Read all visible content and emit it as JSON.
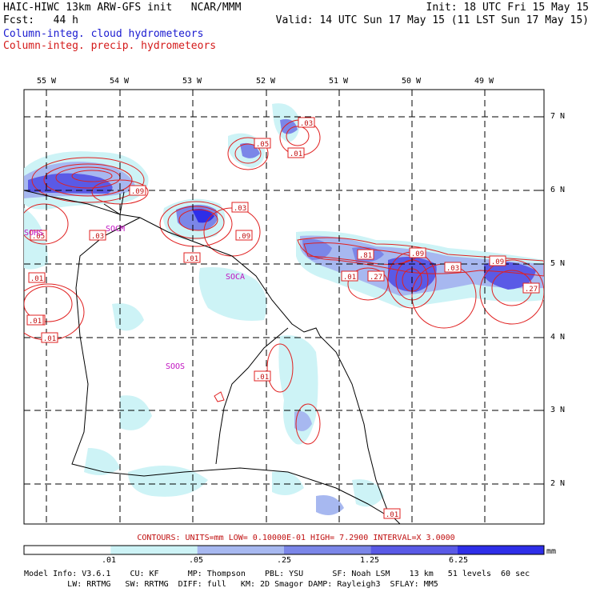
{
  "header": {
    "line1_left": "HAIC-HIWC 13km ARW-GFS init   NCAR/MMM",
    "line1_right": "Init: 18 UTC Fri 15 May 15",
    "line2_left": "Fcst:   44 h",
    "line2_right": "Valid: 14 UTC Sun 17 May 15 (11 LST Sun 17 May 15)",
    "line3": "Column-integ. cloud hydrometeors",
    "line4": "Column-integ. precip. hydrometeors"
  },
  "axes": {
    "lon_labels": [
      "55 W",
      "54 W",
      "53 W",
      "52 W",
      "51 W",
      "50 W",
      "49 W"
    ],
    "lat_labels": [
      "7 N",
      "6 N",
      "5 N",
      "4 N",
      "3 N",
      "2 N"
    ]
  },
  "stations": [
    "SOCA",
    "SOOS",
    "SOCM",
    "SOHS"
  ],
  "contour_labels": [
    ".03",
    ".05",
    ".01",
    ".09",
    ".03",
    ".09",
    ".03",
    ".01",
    ".05",
    ".01",
    ".03",
    ".01",
    ".01",
    ".01",
    ".81",
    ".27",
    ".09",
    ".03",
    ".09",
    ".27",
    ".01",
    ".01"
  ],
  "footer": {
    "contours": "CONTOURS:  UNITS=mm  LOW= 0.10000E-01  HIGH=  7.2900    INTERVAL=X  3.0000",
    "colorbar_labels": [
      ".01",
      ".05",
      ".25",
      "1.25",
      "6.25",
      "mm"
    ],
    "colorbar_colors": [
      "#ffffff",
      "#cdf3f6",
      "#a7b8f0",
      "#7b86e8",
      "#5a5ae6",
      "#2e2ee8"
    ],
    "info1": "Model Info: V3.6.1    CU: KF      MP: Thompson    PBL: YSU      SF: Noah LSM    13 km   51 levels  60 sec",
    "info2": "         LW: RRTMG   SW: RRTMG  DIFF: full   KM: 2D Smagor DAMP: Rayleigh3  SFLAY: MM5"
  }
}
